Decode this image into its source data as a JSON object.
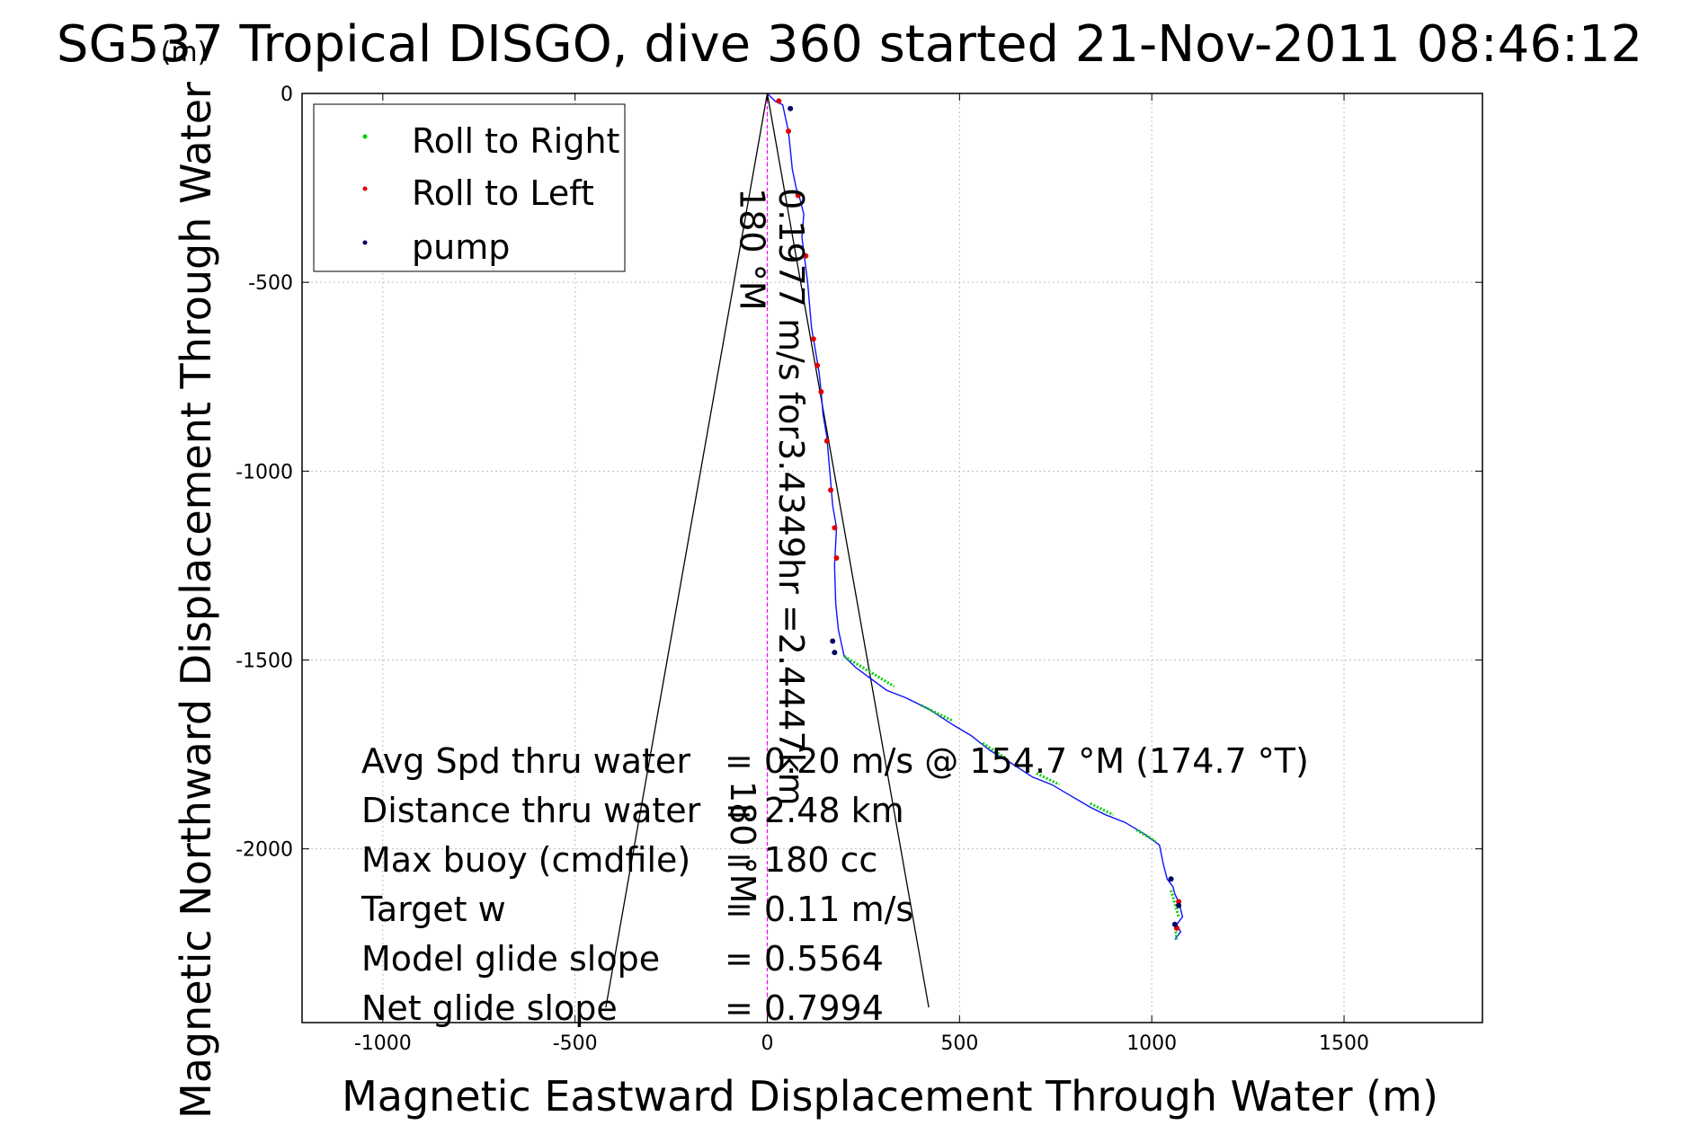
{
  "chart_data": {
    "type": "line",
    "title": "SG537 Tropical DISGO, dive 360 started 21-Nov-2011 08:46:12",
    "title_overlay_text": "(m)",
    "xlabel": "Magnetic Eastward Displacement Through Water (m)",
    "ylabel": "Magnetic Northward Displacement Through Water",
    "xlim": [
      -1210,
      1860
    ],
    "ylim": [
      -2460,
      0
    ],
    "xticks": [
      -1000,
      -500,
      0,
      500,
      1000,
      1500
    ],
    "yticks": [
      0,
      -500,
      -1000,
      -1500,
      -2000
    ],
    "grid": true,
    "legend": {
      "position": "top-left",
      "entries": [
        {
          "label": "Roll to Right",
          "color": "#00d000"
        },
        {
          "label": "Roll to Left",
          "color": "#e00000"
        },
        {
          "label": "pump",
          "color": "#000066"
        }
      ]
    },
    "track": {
      "name": "",
      "color": "#1010ff",
      "x": [
        0,
        20,
        40,
        55,
        60,
        65,
        75,
        85,
        95,
        90,
        95,
        105,
        110,
        115,
        125,
        135,
        140,
        145,
        155,
        160,
        165,
        170,
        180,
        175,
        178,
        185,
        200,
        230,
        270,
        310,
        360,
        420,
        480,
        530,
        580,
        630,
        690,
        740,
        790,
        840,
        880,
        930,
        980,
        1020,
        1030,
        1040,
        1055,
        1060,
        1070,
        1075,
        1080,
        1065,
        1075,
        1060
      ],
      "y": [
        0,
        -20,
        -30,
        -100,
        -150,
        -200,
        -250,
        -280,
        -320,
        -380,
        -420,
        -500,
        -560,
        -620,
        -680,
        -740,
        -790,
        -850,
        -910,
        -970,
        -1030,
        -1090,
        -1150,
        -1250,
        -1350,
        -1420,
        -1490,
        -1520,
        -1550,
        -1580,
        -1600,
        -1630,
        -1670,
        -1700,
        -1740,
        -1770,
        -1810,
        -1830,
        -1860,
        -1890,
        -1910,
        -1930,
        -1960,
        -1990,
        -2040,
        -2080,
        -2100,
        -2120,
        -2140,
        -2160,
        -2180,
        -2200,
        -2220,
        -2240
      ],
      "roll_right_segments": [
        [
          200,
          -1490,
          330,
          -1570
        ],
        [
          400,
          -1620,
          480,
          -1660
        ],
        [
          560,
          -1720,
          620,
          -1760
        ],
        [
          700,
          -1800,
          760,
          -1830
        ],
        [
          840,
          -1880,
          900,
          -1910
        ],
        [
          960,
          -1950,
          1010,
          -1980
        ],
        [
          1050,
          -2110,
          1070,
          -2180
        ],
        [
          1060,
          -2200,
          1065,
          -2240
        ]
      ],
      "roll_left_points": [
        [
          30,
          -20
        ],
        [
          55,
          -100
        ],
        [
          80,
          -270
        ],
        [
          100,
          -430
        ],
        [
          120,
          -650
        ],
        [
          130,
          -720
        ],
        [
          140,
          -790
        ],
        [
          155,
          -920
        ],
        [
          165,
          -1050
        ],
        [
          175,
          -1150
        ],
        [
          180,
          -1230
        ],
        [
          1070,
          -2140
        ],
        [
          1065,
          -2210
        ]
      ],
      "pump_points": [
        [
          60,
          -40
        ],
        [
          170,
          -1450
        ],
        [
          175,
          -1480
        ],
        [
          1050,
          -2080
        ],
        [
          1070,
          -2150
        ],
        [
          1060,
          -2200
        ]
      ]
    },
    "reference_lines": [
      {
        "color": "#000000",
        "x": [
          0,
          -420
        ],
        "y": [
          0,
          -2420
        ]
      },
      {
        "color": "#000000",
        "x": [
          0,
          420
        ],
        "y": [
          0,
          -2420
        ]
      },
      {
        "color": "#ff00ff",
        "x": [
          0,
          0
        ],
        "y": [
          0,
          -2460
        ],
        "dashed": true
      }
    ],
    "annotations": [
      {
        "text": "0.1977 m/s for3.4349hr =2.4447km",
        "x": 32,
        "y": -250,
        "rotation": 90
      },
      {
        "text": "180 °M",
        "x": -70,
        "y": -250,
        "rotation": 90
      },
      {
        "text": "180 °M",
        "x": -95,
        "y": -1820,
        "rotation": 90
      }
    ],
    "stats": [
      {
        "label": "Avg Spd thru water",
        "value": "=  0.20 m/s @ 154.7 °M (174.7 °T)"
      },
      {
        "label": "Distance thru water",
        "value": "=  2.48 km"
      },
      {
        "label": "Max buoy (cmdfile)",
        "value": "= 180 cc"
      },
      {
        "label": "Target w",
        "value": "= 0.11 m/s"
      },
      {
        "label": "Model glide slope",
        "value": "= 0.5564"
      },
      {
        "label": "Net glide slope",
        "value": "= 0.7994"
      }
    ]
  }
}
